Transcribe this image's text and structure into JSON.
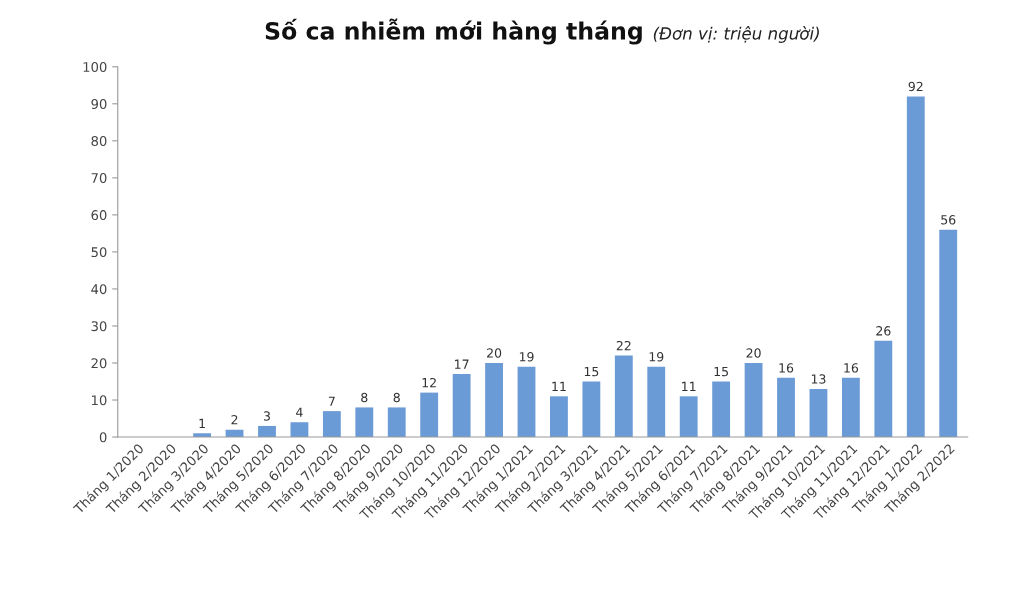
{
  "chart_data": {
    "type": "bar",
    "title": "Số ca nhiễm mới hàng tháng",
    "subtitle": "(Đơn vị: triệu người)",
    "categories": [
      "Tháng 1/2020",
      "Tháng 2/2020",
      "Tháng 3/2020",
      "Tháng 4/2020",
      "Tháng 5/2020",
      "Tháng 6/2020",
      "Tháng 7/2020",
      "Tháng 8/2020",
      "Tháng 9/2020",
      "Tháng 10/2020",
      "Tháng 11/2020",
      "Tháng 12/2020",
      "Tháng 1/2021",
      "Tháng 2/2021",
      "Tháng 3/2021",
      "Tháng 4/2021",
      "Tháng 5/2021",
      "Tháng 6/2021",
      "Tháng 7/2021",
      "Tháng 8/2021",
      "Tháng 9/2021",
      "Tháng 10/2021",
      "Tháng 11/2021",
      "Tháng 12/2021",
      "Tháng 1/2022",
      "Tháng 2/2022"
    ],
    "values": [
      0,
      0,
      1,
      2,
      3,
      4,
      7,
      8,
      8,
      12,
      17,
      20,
      19,
      11,
      15,
      22,
      19,
      11,
      15,
      20,
      16,
      13,
      16,
      26,
      92,
      56
    ],
    "value_labels": [
      null,
      null,
      "1",
      "2",
      "3",
      "4",
      "7",
      "8",
      "8",
      "12",
      "17",
      "20",
      "19",
      "11",
      "15",
      "22",
      "19",
      "11",
      "15",
      "20",
      "16",
      "13",
      "16",
      "26",
      "92",
      "56"
    ],
    "color": "#6b9bd6",
    "ylim": [
      0,
      100
    ],
    "yticks": [
      0,
      10,
      20,
      30,
      40,
      50,
      60,
      70,
      80,
      90,
      100
    ],
    "grid": false,
    "legend": false
  }
}
